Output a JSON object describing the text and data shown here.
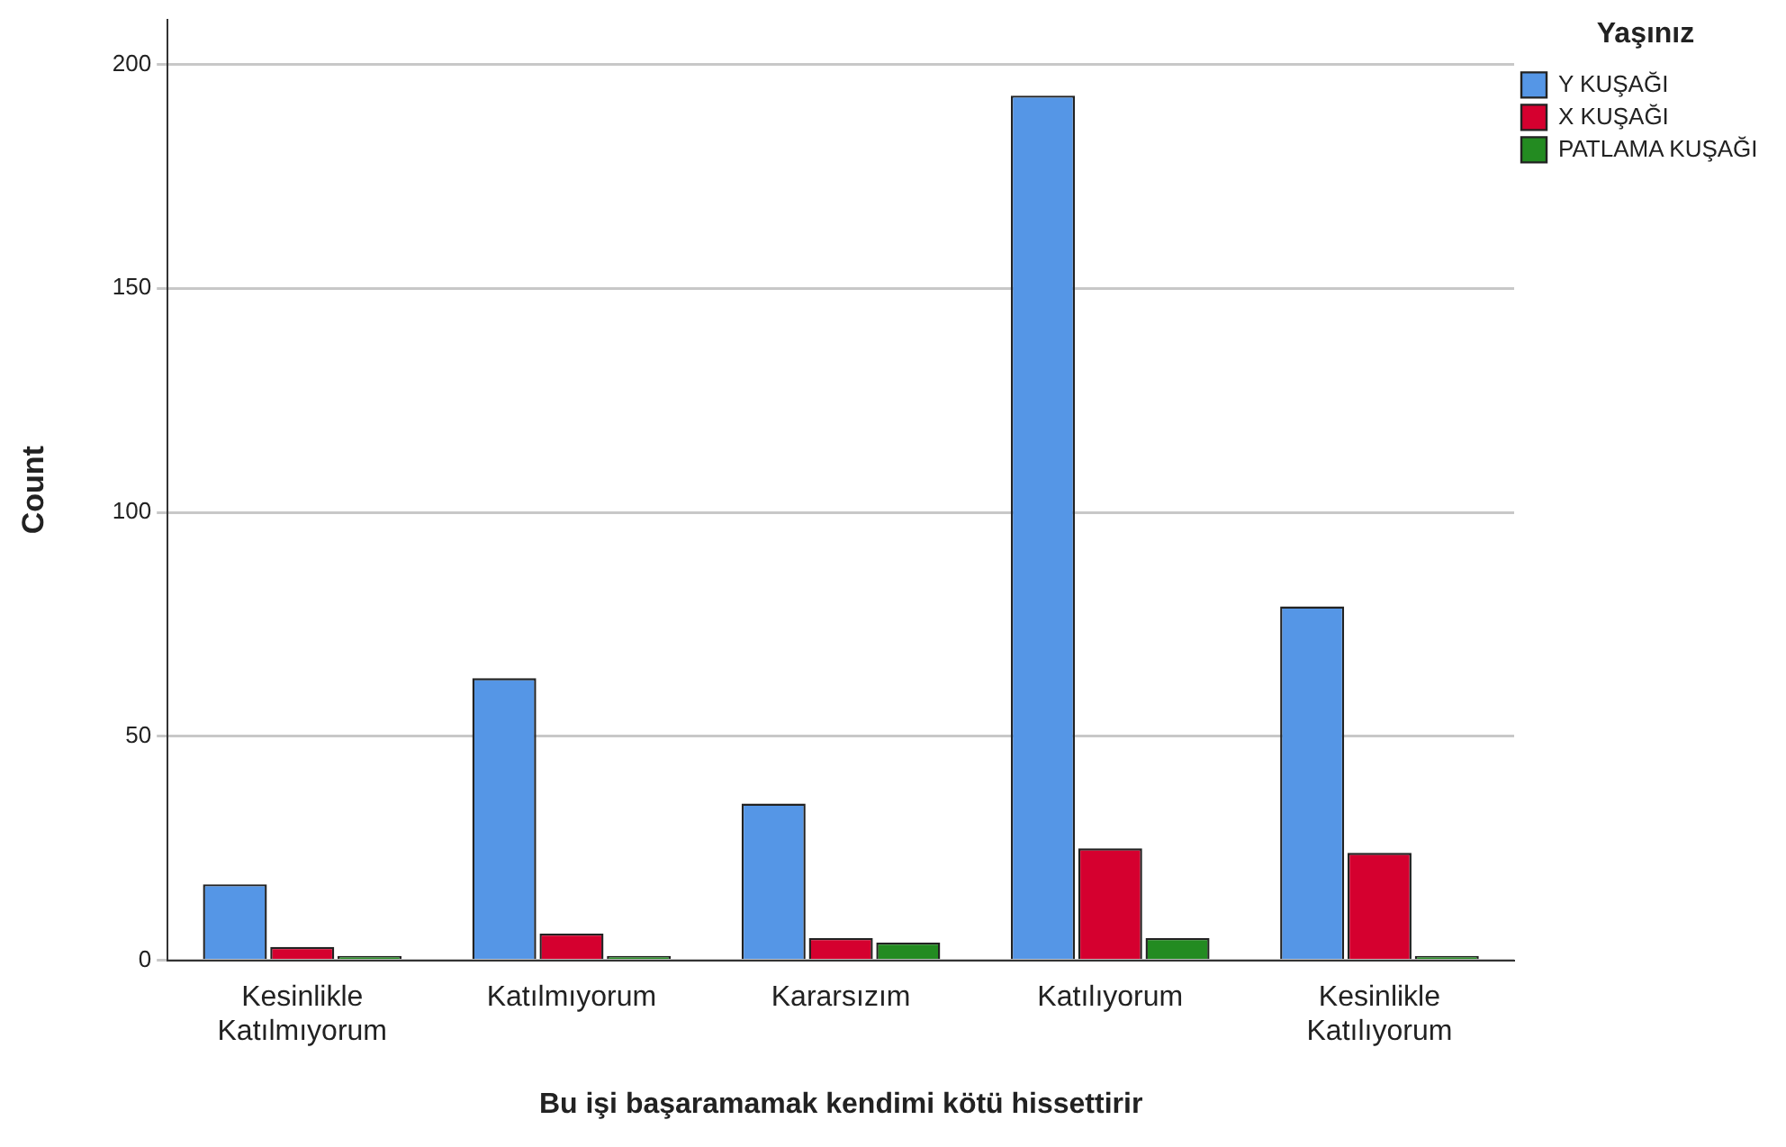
{
  "chart_data": {
    "type": "bar",
    "xlabel": "Bu işi başaramamak kendimi kötü hissettirir",
    "ylabel": "Count",
    "legend_title": "Yaşınız",
    "categories": [
      "Kesinlikle Katılmıyorum",
      "Katılmıyorum",
      "Kararsızım",
      "Katılıyorum",
      "Kesinlikle Katılıyorum"
    ],
    "series": [
      {
        "name": "Y KUŞAĞI",
        "color": "#5596e6",
        "values": [
          17,
          63,
          35,
          193,
          79
        ]
      },
      {
        "name": "X KUŞAĞI",
        "color": "#d5002f",
        "values": [
          3,
          6,
          5,
          25,
          24
        ]
      },
      {
        "name": "PATLAMA KUŞAĞI",
        "color": "#238b21",
        "values": [
          1,
          1,
          4,
          5,
          1
        ]
      }
    ],
    "ylim": [
      0,
      210
    ],
    "yticks": [
      0,
      50,
      100,
      150,
      200
    ],
    "grid": "y",
    "legend": "top right"
  }
}
